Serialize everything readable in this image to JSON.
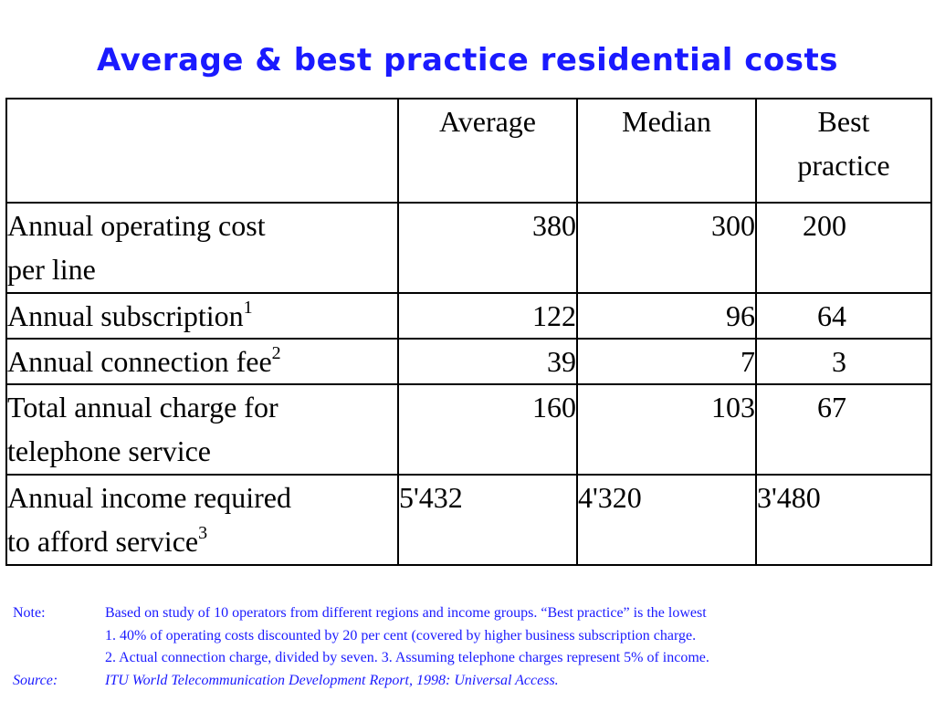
{
  "title": "Average & best practice residential costs",
  "table": {
    "headers": [
      "",
      "Average",
      "Median",
      "Best practice"
    ],
    "header_best_line1": "Best",
    "header_best_line2": "practice",
    "rows": [
      {
        "label_line1": "Annual operating cost",
        "label_line2": "per line",
        "average": "380",
        "median": "300",
        "best": "200"
      },
      {
        "label": "Annual subscription",
        "footnote": "1",
        "average": "122",
        "median": "96",
        "best": "64"
      },
      {
        "label": "Annual connection fee",
        "footnote": "2",
        "average": "39",
        "median": "7",
        "best": "3"
      },
      {
        "label_line1": "Total annual charge for",
        "label_line2": "telephone service",
        "average": "160",
        "median": "103",
        "best": "67"
      },
      {
        "label_line1": "Annual income required",
        "label_line2": "to afford service",
        "footnote": "3",
        "average": "5'432",
        "median": "4'320",
        "best": "3'480"
      }
    ]
  },
  "notes": {
    "note_key": "Note:",
    "note_lines": [
      "Based on study of 10 operators from different regions and income groups. “Best practice” is the lowest",
      "1. 40% of operating costs discounted by 20 per cent (covered by higher business subscription charge.",
      "2. Actual connection charge, divided by seven.  3. Assuming telephone charges represent 5% of income."
    ],
    "source_key": "Source:",
    "source_text": "ITU World Telecommunication Development Report, 1998: Universal Access."
  },
  "colors": {
    "title": "#1a1aff",
    "notes": "#1a1aff",
    "table_text": "#000000",
    "border": "#000000"
  }
}
